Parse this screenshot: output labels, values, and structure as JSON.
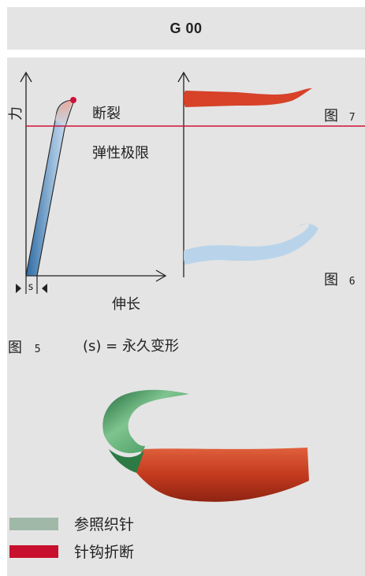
{
  "header": {
    "title": "G 00"
  },
  "diagram": {
    "y_axis_label": "力",
    "x_axis_label": "伸长",
    "break_label": "断裂",
    "elastic_limit_label": "弹性极限",
    "s_marker": "s"
  },
  "figures": {
    "fig5_label": "图",
    "fig5_number": "5",
    "fig6_label": "图",
    "fig6_number": "6",
    "fig7_label": "图",
    "fig7_number": "7",
    "caption": "(s) = 永久变形"
  },
  "legend": [
    {
      "label": "参照织针",
      "color": "#9fb8a8"
    },
    {
      "label": "针钩折断",
      "color": "#c8102e"
    }
  ],
  "colors": {
    "accent_red": "#d0103a",
    "curve_blue": "#3f7fb6",
    "needle_green": "#3f9a5a",
    "needle_red": "#c4351d"
  }
}
